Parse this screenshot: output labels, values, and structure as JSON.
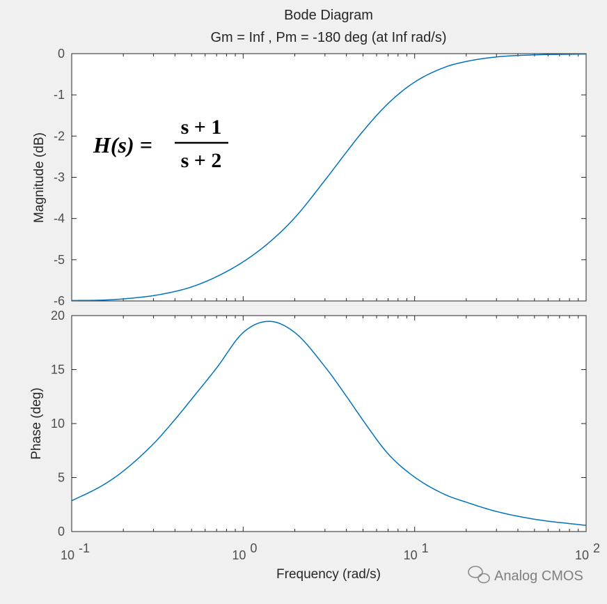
{
  "title": "Bode Diagram",
  "subtitle": "Gm = Inf ,  Pm = -180 deg (at Inf rad/s)",
  "equation": {
    "lhs": "H(s) =",
    "numerator": "s + 1",
    "denominator": "s + 2"
  },
  "watermark": "Analog CMOS",
  "colors": {
    "line": "#0072bd",
    "axes": "#262626",
    "background": "#f0f0f0",
    "plot_bg": "#ffffff"
  },
  "chart_data": [
    {
      "type": "line",
      "name": "magnitude",
      "xscale": "log",
      "xlim": [
        0.1,
        100
      ],
      "ylim": [
        -6,
        0
      ],
      "ylabel": "Magnitude (dB)",
      "yticks": [
        "0",
        "-1",
        "-2",
        "-3",
        "-4",
        "-5",
        "-6"
      ],
      "grid": false,
      "x": [
        0.1,
        0.15,
        0.2,
        0.3,
        0.4,
        0.5,
        0.7,
        1.0,
        1.4,
        2.0,
        3.0,
        4.0,
        5.0,
        7.0,
        10,
        15,
        20,
        30,
        50,
        100
      ],
      "y": [
        -5.99,
        -5.98,
        -5.95,
        -5.87,
        -5.77,
        -5.66,
        -5.41,
        -5.05,
        -4.6,
        -3.98,
        -3.07,
        -2.39,
        -1.88,
        -1.21,
        -0.69,
        -0.33,
        -0.19,
        -0.08,
        -0.03,
        -0.01
      ]
    },
    {
      "type": "line",
      "name": "phase",
      "xscale": "log",
      "xlim": [
        0.1,
        100
      ],
      "ylim": [
        0,
        20
      ],
      "ylabel": "Phase (deg)",
      "xlabel": "Frequency  (rad/s)",
      "yticks": [
        "0",
        "5",
        "10",
        "15",
        "20"
      ],
      "xticks": [
        "10",
        "10",
        "10",
        "10"
      ],
      "xtick_exponents": [
        "-1",
        "0",
        "1",
        "2"
      ],
      "grid": false,
      "x": [
        0.1,
        0.15,
        0.2,
        0.3,
        0.4,
        0.5,
        0.7,
        1.0,
        1.414,
        2.0,
        3.0,
        4.0,
        5.0,
        7.0,
        10,
        15,
        20,
        30,
        50,
        100
      ],
      "y": [
        2.85,
        4.24,
        5.6,
        8.13,
        10.37,
        12.26,
        15.15,
        18.43,
        19.47,
        18.43,
        15.26,
        12.53,
        10.3,
        7.2,
        5.04,
        3.43,
        2.72,
        1.86,
        1.14,
        0.57
      ]
    }
  ]
}
